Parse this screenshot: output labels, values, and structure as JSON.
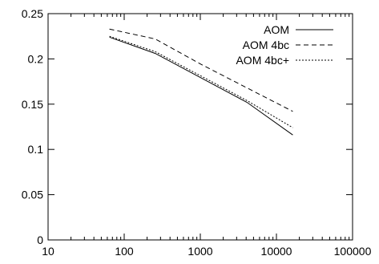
{
  "chart_data": {
    "type": "line",
    "title": "",
    "xlabel": "",
    "ylabel": "",
    "x_scale": "log",
    "xlim": [
      10,
      100000
    ],
    "ylim": [
      0,
      0.25
    ],
    "x_ticks": [
      "10",
      "100",
      "1000",
      "10000",
      "100000"
    ],
    "y_ticks": [
      "0",
      "0.05",
      "0.1",
      "0.15",
      "0.2",
      "0.25"
    ],
    "grid": false,
    "legend_position": "top-right",
    "series": [
      {
        "name": "AOM",
        "dash": "solid",
        "x": [
          64,
          256,
          1024,
          4096,
          16384
        ],
        "y": [
          0.224,
          0.206,
          0.179,
          0.152,
          0.116
        ]
      },
      {
        "name": "AOM 4bc",
        "dash": "dashed",
        "x": [
          64,
          256,
          1024,
          4096,
          16384
        ],
        "y": [
          0.233,
          0.222,
          0.194,
          0.168,
          0.142
        ]
      },
      {
        "name": "AOM 4bc+",
        "dash": "dotted",
        "x": [
          64,
          256,
          1024,
          4096,
          16384
        ],
        "y": [
          0.225,
          0.208,
          0.181,
          0.154,
          0.124
        ]
      }
    ]
  }
}
